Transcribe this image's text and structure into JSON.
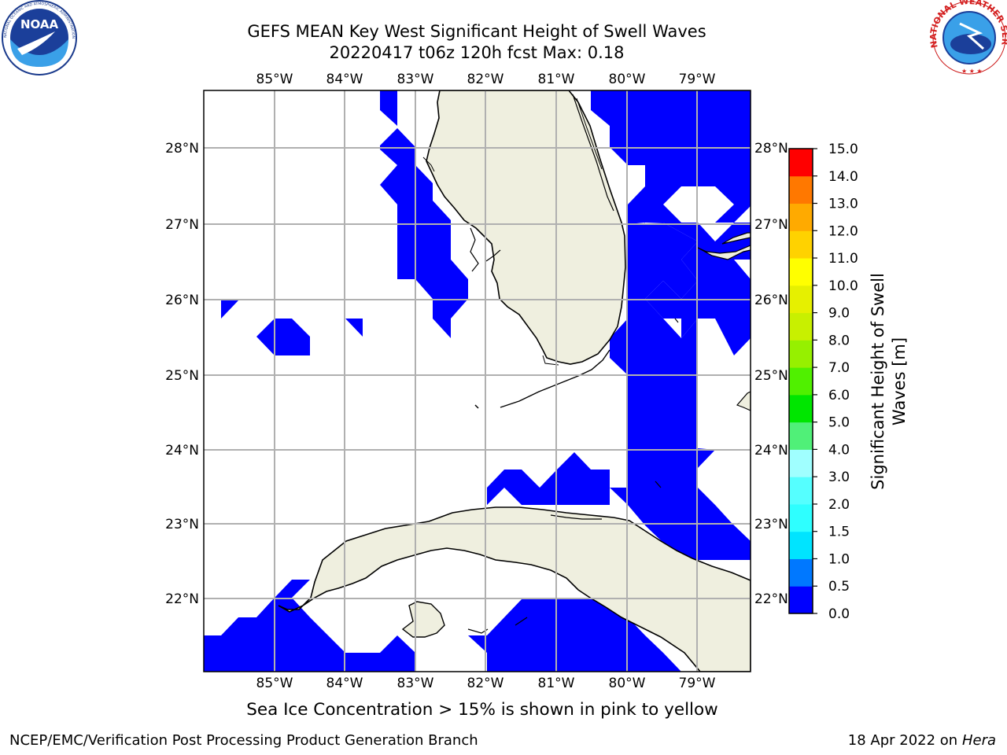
{
  "title_line1": "GEFS MEAN Key West Significant Height of Swell Waves",
  "title_line2": "20220417 t06z 120h fcst   Max: 0.18",
  "logos": {
    "left": "NOAA",
    "left_ring": "NATIONAL OCEANIC AND ATMOSPHERIC ADMINISTRATION · U.S. DEPARTMENT OF COMMERCE",
    "right_ring": "NATIONAL WEATHER SERVICE"
  },
  "map": {
    "lon_labels": [
      "85°W",
      "84°W",
      "83°W",
      "82°W",
      "81°W",
      "80°W",
      "79°W"
    ],
    "lat_labels": [
      "28°N",
      "27°N",
      "26°N",
      "25°N",
      "24°N",
      "23°N",
      "22°N"
    ],
    "lon_range": [
      -86.0,
      -78.25
    ],
    "lat_range": [
      21.1,
      28.8
    ],
    "swell_color": "#0000ff",
    "land_color": "#efefdf",
    "grid_color": "#b0b0b0"
  },
  "colorbar": {
    "label_line1": "Significant Height of Swell",
    "label_line2": "Waves [m]",
    "ticks": [
      "0.0",
      "0.5",
      "1.0",
      "1.5",
      "2.0",
      "3.0",
      "4.0",
      "5.0",
      "6.0",
      "7.0",
      "8.0",
      "9.0",
      "10.0",
      "11.0",
      "12.0",
      "13.0",
      "14.0",
      "15.0"
    ],
    "colors": [
      "#0000ff",
      "#0078ff",
      "#00e4ff",
      "#2effff",
      "#55ffff",
      "#a0ffff",
      "#50f078",
      "#00e600",
      "#50f000",
      "#96f000",
      "#c8f000",
      "#e6f000",
      "#ffff00",
      "#ffd200",
      "#ffaa00",
      "#ff7800",
      "#ff4600",
      "#ff0000"
    ]
  },
  "note": "Sea Ice Concentration > 15% is shown in pink to yellow",
  "footer_left": "NCEP/EMC/Verification Post Processing Product Generation Branch",
  "footer_right_date": "18 Apr 2022 on",
  "footer_right_host": "Hera"
}
